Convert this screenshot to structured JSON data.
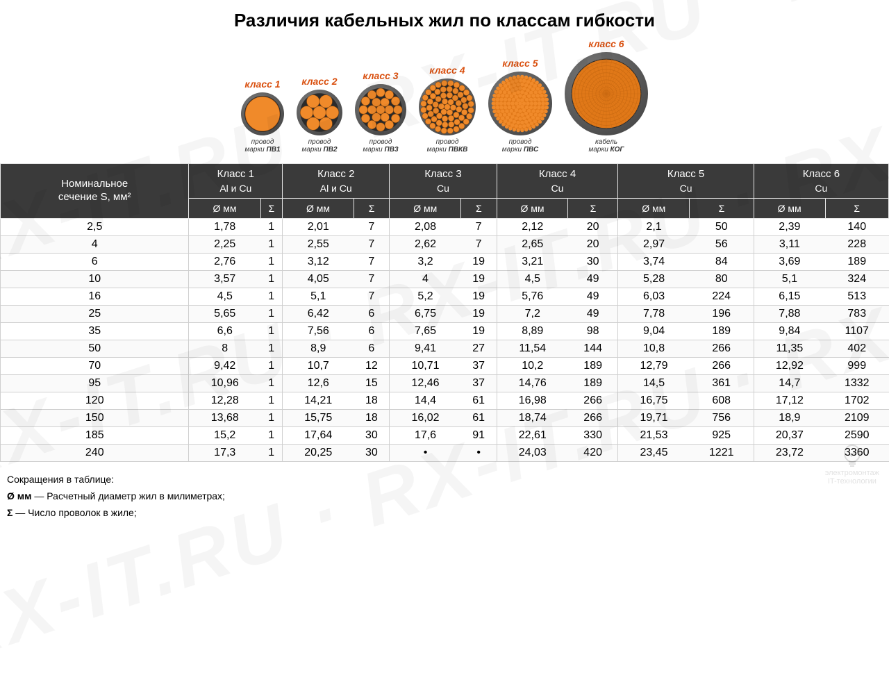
{
  "title": "Различия кабельных жил по классам гибкости",
  "watermark_text": "RX-IT.RU · RX-IT.RU · RX-IT.RU",
  "logo": {
    "line1": "электромонтаж",
    "line2": "IT-технологии"
  },
  "colors": {
    "accent": "#d94f0e",
    "header_bg": "#3a3a3a",
    "header_fg": "#ffffff",
    "copper_fill": "#f08a2a",
    "copper_fine": "#e07818",
    "insulation": "#4a4a4a",
    "insulation_hl": "#7a7a7a",
    "row_border": "#cfcfcf"
  },
  "classes": [
    {
      "label": "класс 1",
      "caption_prefix": "провод\nмарки",
      "brand": "ПВ1",
      "diameter": 62,
      "wire_pattern": "solid"
    },
    {
      "label": "класс 2",
      "caption_prefix": "провод\nмарки",
      "brand": "ПВ2",
      "diameter": 66,
      "wire_pattern": "7"
    },
    {
      "label": "класс 3",
      "caption_prefix": "провод\nмарки",
      "brand": "ПВ3",
      "diameter": 74,
      "wire_pattern": "19"
    },
    {
      "label": "класс 4",
      "caption_prefix": "провод\nмарки",
      "brand": "ПВКВ",
      "diameter": 82,
      "wire_pattern": "many"
    },
    {
      "label": "класс 5",
      "caption_prefix": "провод\nмарки",
      "brand": "ПВС",
      "diameter": 92,
      "wire_pattern": "fine"
    },
    {
      "label": "класс 6",
      "caption_prefix": "кабель\nмарки",
      "brand": "КОГ",
      "diameter": 120,
      "wire_pattern": "superfine"
    }
  ],
  "table": {
    "row_header": "Номинальное\nсечение S, мм²",
    "groups": [
      {
        "title": "Класс 1",
        "material": "Al и Cu"
      },
      {
        "title": "Класс 2",
        "material": "Al и Cu"
      },
      {
        "title": "Класс 3",
        "material": "Cu"
      },
      {
        "title": "Класс 4",
        "material": "Cu"
      },
      {
        "title": "Класс 5",
        "material": "Cu"
      },
      {
        "title": "Класс 6",
        "material": "Cu"
      }
    ],
    "subcols": [
      "Ø мм",
      "Σ"
    ],
    "rows": [
      {
        "s": "2,5",
        "v": [
          "1,78",
          "1",
          "2,01",
          "7",
          "2,08",
          "7",
          "2,12",
          "20",
          "2,1",
          "50",
          "2,39",
          "140"
        ]
      },
      {
        "s": "4",
        "v": [
          "2,25",
          "1",
          "2,55",
          "7",
          "2,62",
          "7",
          "2,65",
          "20",
          "2,97",
          "56",
          "3,11",
          "228"
        ]
      },
      {
        "s": "6",
        "v": [
          "2,76",
          "1",
          "3,12",
          "7",
          "3,2",
          "19",
          "3,21",
          "30",
          "3,74",
          "84",
          "3,69",
          "189"
        ]
      },
      {
        "s": "10",
        "v": [
          "3,57",
          "1",
          "4,05",
          "7",
          "4",
          "19",
          "4,5",
          "49",
          "5,28",
          "80",
          "5,1",
          "324"
        ]
      },
      {
        "s": "16",
        "v": [
          "4,5",
          "1",
          "5,1",
          "7",
          "5,2",
          "19",
          "5,76",
          "49",
          "6,03",
          "224",
          "6,15",
          "513"
        ]
      },
      {
        "s": "25",
        "v": [
          "5,65",
          "1",
          "6,42",
          "6",
          "6,75",
          "19",
          "7,2",
          "49",
          "7,78",
          "196",
          "7,88",
          "783"
        ]
      },
      {
        "s": "35",
        "v": [
          "6,6",
          "1",
          "7,56",
          "6",
          "7,65",
          "19",
          "8,89",
          "98",
          "9,04",
          "189",
          "9,84",
          "1107"
        ]
      },
      {
        "s": "50",
        "v": [
          "8",
          "1",
          "8,9",
          "6",
          "9,41",
          "27",
          "11,54",
          "144",
          "10,8",
          "266",
          "11,35",
          "402"
        ]
      },
      {
        "s": "70",
        "v": [
          "9,42",
          "1",
          "10,7",
          "12",
          "10,71",
          "37",
          "10,2",
          "189",
          "12,79",
          "266",
          "12,92",
          "999"
        ]
      },
      {
        "s": "95",
        "v": [
          "10,96",
          "1",
          "12,6",
          "15",
          "12,46",
          "37",
          "14,76",
          "189",
          "14,5",
          "361",
          "14,7",
          "1332"
        ]
      },
      {
        "s": "120",
        "v": [
          "12,28",
          "1",
          "14,21",
          "18",
          "14,4",
          "61",
          "16,98",
          "266",
          "16,75",
          "608",
          "17,12",
          "1702"
        ]
      },
      {
        "s": "150",
        "v": [
          "13,68",
          "1",
          "15,75",
          "18",
          "16,02",
          "61",
          "18,74",
          "266",
          "19,71",
          "756",
          "18,9",
          "2109"
        ]
      },
      {
        "s": "185",
        "v": [
          "15,2",
          "1",
          "17,64",
          "30",
          "17,6",
          "91",
          "22,61",
          "330",
          "21,53",
          "925",
          "20,37",
          "2590"
        ]
      },
      {
        "s": "240",
        "v": [
          "17,3",
          "1",
          "20,25",
          "30",
          "•",
          "•",
          "24,03",
          "420",
          "23,45",
          "1221",
          "23,72",
          "3360"
        ]
      }
    ]
  },
  "footnotes": {
    "heading": "Сокращения в таблице:",
    "lines": [
      "Ø мм — Расчетный диаметр жил в милиметрах;",
      "Σ — Число проволок в жиле;"
    ]
  }
}
